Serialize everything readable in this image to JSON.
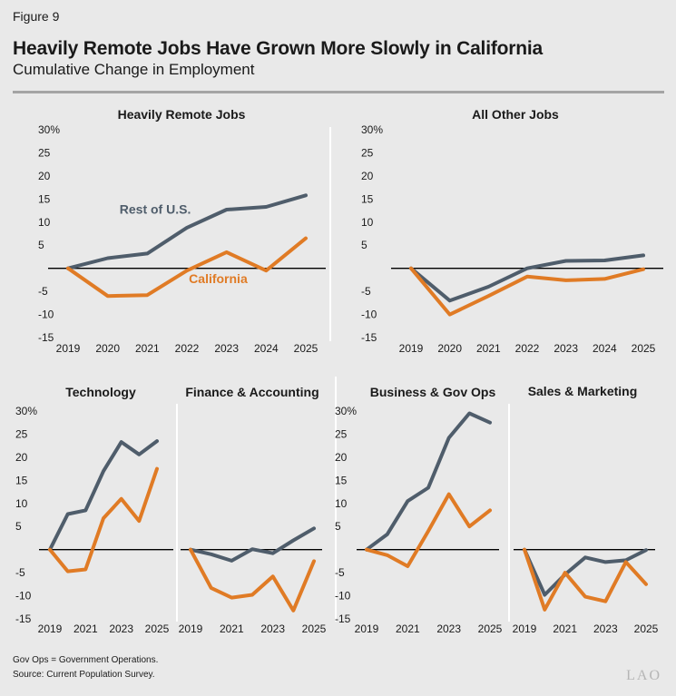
{
  "figure_label": "Figure 9",
  "title": "Heavily Remote Jobs Have Grown More Slowly in California",
  "subtitle": "Cumulative Change in Employment",
  "footnotes": [
    "Gov Ops = Government Operations.",
    "Source: Current Population Survey."
  ],
  "logo_text": "LAO",
  "colors": {
    "rest_of_us": "#4f5d6b",
    "california": "#e07b25",
    "baseline": "#000000"
  },
  "chart_data": [
    {
      "type": "line",
      "title": "Heavily Remote Jobs",
      "x": [
        2019,
        2020,
        2021,
        2022,
        2023,
        2024,
        2025
      ],
      "x_ticks": [
        "2019",
        "2020",
        "2021",
        "2022",
        "2023",
        "2024",
        "2025"
      ],
      "y_ticks": [
        "30%",
        "25",
        "20",
        "15",
        "10",
        "5",
        "",
        "-5",
        "-10",
        "-15"
      ],
      "ylim": [
        -15,
        30
      ],
      "series": [
        {
          "name": "Rest of U.S.",
          "values": [
            0,
            2.2,
            3.2,
            8.8,
            12.7,
            13.3,
            15.8
          ]
        },
        {
          "name": "California",
          "values": [
            0,
            -6,
            -5.8,
            -0.5,
            3.5,
            -0.5,
            6.5
          ]
        }
      ],
      "annotations": [
        {
          "text": "Rest of U.S.",
          "x": 2020.3,
          "y": 11.8,
          "series": "Rest of U.S."
        },
        {
          "text": "California",
          "x": 2022.05,
          "y": -3.2,
          "series": "California"
        }
      ]
    },
    {
      "type": "line",
      "title": "All Other Jobs",
      "x": [
        2019,
        2020,
        2021,
        2022,
        2023,
        2024,
        2025
      ],
      "x_ticks": [
        "2019",
        "2020",
        "2021",
        "2022",
        "2023",
        "2024",
        "2025"
      ],
      "y_ticks": [
        "30%",
        "25",
        "20",
        "15",
        "10",
        "5",
        "",
        "-5",
        "-10",
        "-15"
      ],
      "ylim": [
        -15,
        30
      ],
      "series": [
        {
          "name": "Rest of U.S.",
          "values": [
            0,
            -7,
            -4,
            0,
            1.6,
            1.7,
            2.8
          ]
        },
        {
          "name": "California",
          "values": [
            0,
            -10,
            -6,
            -1.8,
            -2.6,
            -2.3,
            -0.2
          ]
        }
      ]
    },
    {
      "type": "line",
      "title": "Technology",
      "x": [
        2019,
        2020,
        2021,
        2022,
        2023,
        2024,
        2025
      ],
      "x_ticks": [
        "2019",
        "2021",
        "2023",
        "2025"
      ],
      "y_ticks": [
        "30%",
        "25",
        "20",
        "15",
        "10",
        "5",
        "",
        "-5",
        "-10",
        "-15"
      ],
      "ylim": [
        -15,
        30
      ],
      "series": [
        {
          "name": "Rest of U.S.",
          "values": [
            0,
            7.7,
            8.5,
            17,
            23.3,
            20.6,
            23.5
          ]
        },
        {
          "name": "California",
          "values": [
            0,
            -4.7,
            -4.3,
            6.8,
            11,
            6.2,
            17.5
          ]
        }
      ]
    },
    {
      "type": "line",
      "title": "Finance & Accounting",
      "x": [
        2019,
        2020,
        2021,
        2022,
        2023,
        2024,
        2025
      ],
      "x_ticks": [
        "2019",
        "2021",
        "2023",
        "2025"
      ],
      "ylim": [
        -15,
        30
      ],
      "series": [
        {
          "name": "Rest of U.S.",
          "values": [
            0,
            -1,
            -2.4,
            0.1,
            -0.8,
            2,
            4.6
          ]
        },
        {
          "name": "California",
          "values": [
            0,
            -8.3,
            -10.4,
            -9.8,
            -5.8,
            -13.2,
            -2.5
          ]
        }
      ]
    },
    {
      "type": "line",
      "title": "Business & Gov Ops",
      "x": [
        2019,
        2020,
        2021,
        2022,
        2023,
        2024,
        2025
      ],
      "x_ticks": [
        "2019",
        "2021",
        "2023",
        "2025"
      ],
      "y_ticks": [
        "30%",
        "25",
        "20",
        "15",
        "10",
        "5",
        "",
        "-5",
        "-10",
        "-15"
      ],
      "ylim": [
        -15,
        30
      ],
      "series": [
        {
          "name": "Rest of U.S.",
          "values": [
            0,
            3.3,
            10.5,
            13.4,
            24.2,
            29.5,
            27.5
          ]
        },
        {
          "name": "California",
          "values": [
            0,
            -1.2,
            -3.6,
            4,
            12,
            5,
            8.5
          ]
        }
      ]
    },
    {
      "type": "line",
      "title": "Sales & Marketing",
      "x": [
        2019,
        2020,
        2021,
        2022,
        2023,
        2024,
        2025
      ],
      "x_ticks": [
        "2019",
        "2021",
        "2023",
        "2025"
      ],
      "ylim": [
        -15,
        30
      ],
      "series": [
        {
          "name": "Rest of U.S.",
          "values": [
            0,
            -9.8,
            -5.4,
            -1.7,
            -2.7,
            -2.3,
            -0.1
          ]
        },
        {
          "name": "California",
          "values": [
            0,
            -13,
            -5,
            -10.2,
            -11.2,
            -2.7,
            -7.5
          ]
        }
      ]
    }
  ]
}
